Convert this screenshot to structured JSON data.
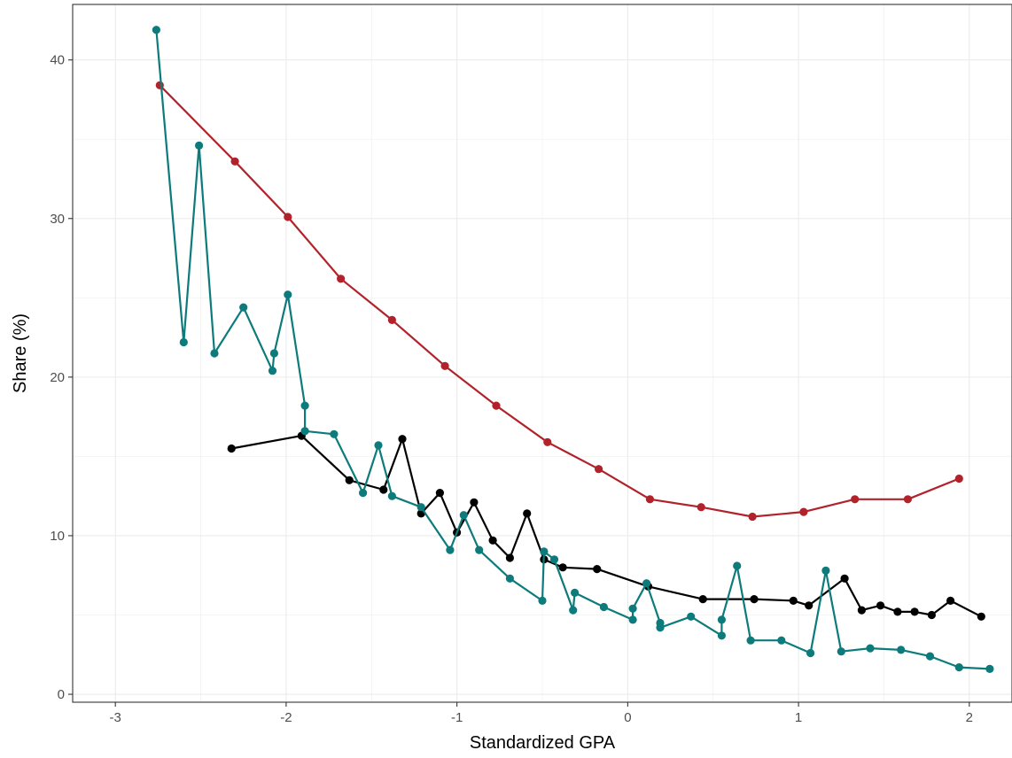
{
  "chart_data": {
    "type": "line",
    "title": "",
    "xlabel": "Standardized GPA",
    "ylabel": "Share (%)",
    "xlim": [
      -3.25,
      2.25
    ],
    "ylim": [
      -0.5,
      43.5
    ],
    "x_ticks": [
      -3,
      -2,
      -1,
      0,
      1,
      2
    ],
    "x_tick_labels": [
      "-3",
      "-2",
      "-1",
      "0",
      "1",
      "2"
    ],
    "y_ticks": [
      0,
      10,
      20,
      30,
      40
    ],
    "y_tick_labels": [
      "0",
      "10",
      "20",
      "30",
      "40"
    ],
    "grid": true,
    "legend": "none",
    "series": [
      {
        "color": "#b2222b",
        "x": [
          -2.74,
          -2.3,
          -1.99,
          -1.68,
          -1.38,
          -1.07,
          -0.77,
          -0.47,
          -0.17,
          0.13,
          0.43,
          0.73,
          1.03,
          1.33,
          1.64,
          1.94
        ],
        "y": [
          38.4,
          33.6,
          30.1,
          26.2,
          23.6,
          20.7,
          18.2,
          15.9,
          14.2,
          12.3,
          11.8,
          11.2,
          11.5,
          12.3,
          12.3,
          13.6
        ]
      },
      {
        "color": "#000000",
        "x": [
          -2.32,
          -1.91,
          -1.63,
          -1.43,
          -1.32,
          -1.21,
          -1.1,
          -1.0,
          -0.9,
          -0.79,
          -0.69,
          -0.59,
          -0.49,
          -0.38,
          -0.18,
          0.12,
          0.44,
          0.74,
          0.97,
          1.06,
          1.27,
          1.37,
          1.48,
          1.58,
          1.68,
          1.78,
          1.89,
          2.07
        ],
        "y": [
          15.5,
          16.3,
          13.5,
          12.9,
          16.1,
          11.4,
          12.7,
          10.2,
          12.1,
          9.7,
          8.6,
          11.4,
          8.5,
          8.0,
          7.9,
          6.8,
          6.0,
          6.0,
          5.9,
          5.6,
          7.3,
          5.3,
          5.6,
          5.2,
          5.2,
          5.0,
          5.9,
          4.9
        ]
      },
      {
        "color": "#0d7b7b",
        "x": [
          -2.76,
          -2.6,
          -2.51,
          -2.42,
          -2.25,
          -2.08,
          -2.07,
          -1.99,
          -1.89,
          -1.89,
          -1.72,
          -1.55,
          -1.46,
          -1.38,
          -1.21,
          -1.04,
          -0.96,
          -0.87,
          -0.69,
          -0.5,
          -0.49,
          -0.43,
          -0.32,
          -0.31,
          -0.14,
          0.03,
          0.03,
          0.11,
          0.19,
          0.19,
          0.37,
          0.55,
          0.55,
          0.64,
          0.72,
          0.9,
          1.07,
          1.16,
          1.25,
          1.42,
          1.6,
          1.77,
          1.94,
          2.12
        ],
        "y": [
          41.9,
          22.2,
          34.6,
          21.5,
          24.4,
          20.4,
          21.5,
          25.2,
          18.2,
          16.6,
          16.4,
          12.7,
          15.7,
          12.5,
          11.8,
          9.1,
          11.3,
          9.1,
          7.3,
          5.9,
          9.0,
          8.5,
          5.3,
          6.4,
          5.5,
          4.7,
          5.4,
          7.0,
          4.5,
          4.2,
          4.9,
          3.7,
          4.7,
          8.1,
          3.4,
          3.4,
          2.6,
          7.8,
          2.7,
          2.9,
          2.8,
          2.4,
          1.7,
          1.6
        ]
      }
    ]
  }
}
